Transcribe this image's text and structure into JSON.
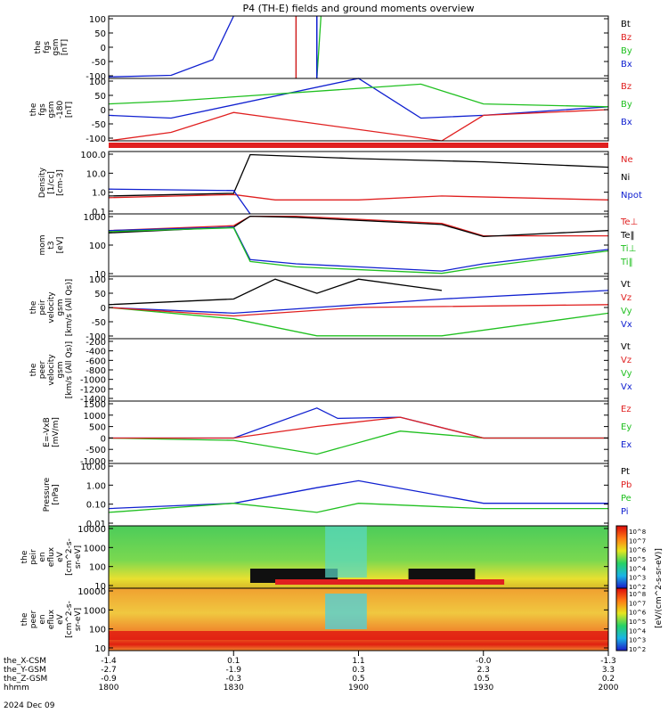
{
  "title": "P4 (TH-E) fields and ground moments overview",
  "panels": [
    {
      "id": "fgs",
      "ylabel": [
        "the",
        "fgs",
        "gsm",
        "[nT]"
      ],
      "ticks": [
        "100",
        "50",
        "0",
        "-50",
        "-100"
      ],
      "legend": [
        {
          "text": "Bt",
          "color": "#000000"
        },
        {
          "text": "Bz",
          "color": "#e02020"
        },
        {
          "text": "By",
          "color": "#20c020"
        },
        {
          "text": "Bx",
          "color": "#1020d0"
        }
      ]
    },
    {
      "id": "fgs_dsl",
      "ylabel": [
        "the",
        "fgs",
        "gsm",
        "-180",
        "[nT]"
      ],
      "ticks": [
        "100",
        "50",
        "0",
        "-50",
        "-100"
      ],
      "legend": [
        {
          "text": "Bz",
          "color": "#e02020"
        },
        {
          "text": "By",
          "color": "#20c020"
        },
        {
          "text": "Bx",
          "color": "#1020d0"
        }
      ]
    },
    {
      "id": "density",
      "ylabel": [
        "Density",
        "[1/cc]",
        "[cm-3]"
      ],
      "ticks": [
        "100.0",
        "10.0",
        "1.0",
        "0.1"
      ],
      "legend": [
        {
          "text": "Ne",
          "color": "#e02020"
        },
        {
          "text": "Ni",
          "color": "#000000"
        },
        {
          "text": "Npot",
          "color": "#1020d0"
        }
      ]
    },
    {
      "id": "temp",
      "ylabel": [
        "mom",
        "t3",
        "[eV]"
      ],
      "ticks": [
        "1000",
        "100",
        "10"
      ],
      "legend": [
        {
          "text": "Te⊥",
          "color": "#e02020"
        },
        {
          "text": "Te‖",
          "color": "#000000"
        },
        {
          "text": "Ti⊥",
          "color": "#20c020"
        },
        {
          "text": "Ti‖",
          "color": "#20c020"
        }
      ]
    },
    {
      "id": "peir_vel",
      "ylabel": [
        "the",
        "peir",
        "velocity",
        "gsm",
        "[km/s (All Qs)]"
      ],
      "ticks": [
        "100",
        "50",
        "0",
        "-50",
        "-100"
      ],
      "legend": [
        {
          "text": "Vt",
          "color": "#000000"
        },
        {
          "text": "Vz",
          "color": "#e02020"
        },
        {
          "text": "Vy",
          "color": "#20c020"
        },
        {
          "text": "Vx",
          "color": "#1020d0"
        }
      ]
    },
    {
      "id": "peer_vel",
      "ylabel": [
        "the",
        "peer",
        "velocity",
        "gsm",
        "[km/s (All Qs)]"
      ],
      "ticks": [
        "-200",
        "-400",
        "-600",
        "-800",
        "-1000",
        "-1200",
        "-1400"
      ],
      "legend": [
        {
          "text": "Vt",
          "color": "#000000"
        },
        {
          "text": "Vz",
          "color": "#e02020"
        },
        {
          "text": "Vy",
          "color": "#20c020"
        },
        {
          "text": "Vx",
          "color": "#1020d0"
        }
      ]
    },
    {
      "id": "efield",
      "ylabel": [
        "E=-VxB",
        "[mV/m]"
      ],
      "ticks": [
        "1500",
        "1000",
        "500",
        "0",
        "-500",
        "-1000"
      ],
      "legend": [
        {
          "text": "Ez",
          "color": "#e02020"
        },
        {
          "text": "Ey",
          "color": "#20c020"
        },
        {
          "text": "Ex",
          "color": "#1020d0"
        }
      ]
    },
    {
      "id": "pressure",
      "ylabel": [
        "Pressure",
        "[nPa]"
      ],
      "ticks": [
        "10.00",
        "1.00",
        "0.10",
        "0.01"
      ],
      "legend": [
        {
          "text": "Pt",
          "color": "#000000"
        },
        {
          "text": "Pb",
          "color": "#e02020"
        },
        {
          "text": "Pe",
          "color": "#20c020"
        },
        {
          "text": "Pi",
          "color": "#1020d0"
        }
      ]
    },
    {
      "id": "peir_spec",
      "ylabel": [
        "the",
        "peir",
        "en",
        "eflux",
        "eV",
        "[cm^2-s-",
        "sr-eV]"
      ],
      "ticks": [
        "10000",
        "1000",
        "100",
        "10"
      ],
      "legend": []
    },
    {
      "id": "peer_spec",
      "ylabel": [
        "the",
        "peer",
        "en",
        "eflux",
        "eV",
        "[cm^2-s-",
        "sr-eV]"
      ],
      "ticks": [
        "10000",
        "1000",
        "100",
        "10"
      ],
      "legend": []
    }
  ],
  "colorbar": {
    "label": "[eV/(cm^2-s-sr-eV)]",
    "ticks": [
      "10^8",
      "10^7",
      "10^6",
      "10^5",
      "10^4",
      "10^3",
      "10^2",
      "10^8",
      "10^7",
      "10^6",
      "10^5",
      "10^4",
      "10^3",
      "10^2"
    ]
  },
  "xaxis": {
    "rows": [
      {
        "label": "the_X-CSM",
        "values": [
          "-1.4",
          "0.1",
          "1.1",
          "-0.0",
          "-1.3"
        ]
      },
      {
        "label": "the_Y-GSM",
        "values": [
          "-2.7",
          "-1.9",
          "0.3",
          "2.3",
          "3.3"
        ]
      },
      {
        "label": "the_Z-GSM",
        "values": [
          "-0.9",
          "-0.3",
          "0.5",
          "0.5",
          "0.2"
        ]
      },
      {
        "label": "hhmm",
        "values": [
          "1800",
          "1830",
          "1900",
          "1930",
          "2000"
        ]
      }
    ],
    "date": "2024 Dec 09"
  },
  "chart_data": {
    "type": "line",
    "title": "P4 (TH-E) fields and ground moments overview",
    "x_ticks": [
      "1800",
      "1830",
      "1900",
      "1930",
      "2000"
    ],
    "panels": [
      {
        "name": "the fgs gsm",
        "unit": "nT",
        "ylim": [
          -100,
          100
        ],
        "series": [
          {
            "name": "Bx",
            "x": [
              "1800",
              "1815",
              "1825",
              "1830"
            ],
            "values": [
              -95,
              -90,
              -40,
              100
            ]
          },
          {
            "name": "By",
            "x": [
              "1850",
              "1851"
            ],
            "values": [
              -100,
              100
            ]
          }
        ]
      },
      {
        "name": "the fgs gsm -180",
        "unit": "nT",
        "ylim": [
          -120,
          100
        ],
        "series": [
          {
            "name": "Bx",
            "x": [
              "1800",
              "1815",
              "1900",
              "1915",
              "1930",
              "2000"
            ],
            "values": [
              -30,
              -40,
              100,
              -40,
              -30,
              0
            ]
          },
          {
            "name": "By",
            "x": [
              "1800",
              "1815",
              "1915",
              "1930",
              "2000"
            ],
            "values": [
              10,
              20,
              80,
              10,
              0
            ]
          },
          {
            "name": "Bz",
            "x": [
              "1800",
              "1815",
              "1830",
              "1920",
              "1930",
              "2000"
            ],
            "values": [
              -120,
              -90,
              -20,
              -120,
              -30,
              -10
            ]
          }
        ]
      },
      {
        "name": "Density",
        "unit": "cm-3",
        "ylim": [
          0.05,
          150
        ],
        "scale": "log",
        "series": [
          {
            "name": "Ni",
            "x": [
              "1800",
              "1830",
              "1834",
              "1900",
              "1930",
              "2000"
            ],
            "values": [
              0.5,
              0.7,
              100,
              60,
              40,
              20
            ]
          },
          {
            "name": "Ne",
            "x": [
              "1800",
              "1830",
              "1840",
              "1900",
              "1920",
              "2000"
            ],
            "values": [
              0.4,
              0.6,
              0.3,
              0.3,
              0.5,
              0.3
            ]
          },
          {
            "name": "Npot",
            "x": [
              "1800",
              "1830",
              "1834"
            ],
            "values": [
              1.2,
              1.0,
              0.05
            ]
          }
        ]
      },
      {
        "name": "mom t3",
        "unit": "eV",
        "ylim": [
          6,
          2500
        ],
        "scale": "log",
        "series": [
          {
            "name": "Te⊥",
            "x": [
              "1800",
              "1830",
              "1834",
              "1845",
              "1920",
              "1930",
              "2000"
            ],
            "values": [
              500,
              800,
              2000,
              2000,
              1000,
              300,
              300
            ]
          },
          {
            "name": "Te‖",
            "x": [
              "1800",
              "1830",
              "1834",
              "1845",
              "1920",
              "1930",
              "2000"
            ],
            "values": [
              400,
              700,
              2000,
              1800,
              900,
              280,
              500
            ]
          },
          {
            "name": "Ti⊥",
            "x": [
              "1800",
              "1830",
              "1834",
              "1845",
              "1920",
              "1930",
              "2000"
            ],
            "values": [
              500,
              700,
              30,
              20,
              10,
              20,
              80
            ]
          },
          {
            "name": "Ti‖",
            "x": [
              "1800",
              "1830",
              "1834",
              "1845",
              "1920",
              "1930",
              "2000"
            ],
            "values": [
              450,
              650,
              25,
              15,
              8,
              15,
              70
            ]
          }
        ]
      },
      {
        "name": "the peir velocity gsm",
        "unit": "km/s (All Qs)",
        "ylim": [
          -110,
          110
        ],
        "series": [
          {
            "name": "Vt",
            "x": [
              "1800",
              "1830",
              "1840",
              "1850",
              "1900",
              "1920"
            ],
            "values": [
              10,
              30,
              100,
              50,
              100,
              60
            ]
          },
          {
            "name": "Vx",
            "x": [
              "1800",
              "1830",
              "1850",
              "1920",
              "2000"
            ],
            "values": [
              0,
              -20,
              0,
              30,
              60
            ]
          },
          {
            "name": "Vy",
            "x": [
              "1800",
              "1830",
              "1850",
              "1920",
              "2000"
            ],
            "values": [
              0,
              -40,
              -100,
              -100,
              -20
            ]
          },
          {
            "name": "Vz",
            "x": [
              "1800",
              "1830",
              "1900",
              "2000"
            ],
            "values": [
              0,
              -30,
              0,
              10
            ]
          }
        ]
      },
      {
        "name": "the peer velocity gsm",
        "unit": "km/s (All Qs)",
        "ylim": [
          -1500,
          -100
        ],
        "series": []
      },
      {
        "name": "E=-VxB",
        "unit": "mV/m",
        "ylim": [
          -1100,
          1600
        ],
        "series": [
          {
            "name": "Ex",
            "x": [
              "1800",
              "1830",
              "1850",
              "1855",
              "1910",
              "1930",
              "2000"
            ],
            "values": [
              0,
              0,
              1300,
              850,
              900,
              0,
              0
            ]
          },
          {
            "name": "Ey",
            "x": [
              "1800",
              "1830",
              "1850",
              "1910",
              "1930",
              "2000"
            ],
            "values": [
              0,
              -100,
              -700,
              300,
              0,
              0
            ]
          },
          {
            "name": "Ez",
            "x": [
              "1800",
              "1830",
              "1850",
              "1910",
              "1930",
              "2000"
            ],
            "values": [
              0,
              0,
              500,
              900,
              0,
              0
            ]
          }
        ]
      },
      {
        "name": "Pressure",
        "unit": "nPa",
        "ylim": [
          0.005,
          20
        ],
        "scale": "log",
        "series": [
          {
            "name": "Pi",
            "x": [
              "1800",
              "1830",
              "1850",
              "1900",
              "1930",
              "2000"
            ],
            "values": [
              0.05,
              0.1,
              0.8,
              2.0,
              0.1,
              0.1
            ]
          },
          {
            "name": "Pe",
            "x": [
              "1800",
              "1830",
              "1850",
              "1900",
              "1930",
              "2000"
            ],
            "values": [
              0.03,
              0.1,
              0.03,
              0.1,
              0.05,
              0.05
            ]
          }
        ]
      },
      {
        "name": "the peir en eflux",
        "unit": "eV/(cm^2-s-sr-eV)",
        "type": "heatmap",
        "ylim": [
          7,
          20000
        ],
        "scale": "log"
      },
      {
        "name": "the peer en eflux",
        "unit": "eV/(cm^2-s-sr-eV)",
        "type": "heatmap",
        "ylim": [
          7,
          20000
        ],
        "scale": "log"
      }
    ]
  }
}
